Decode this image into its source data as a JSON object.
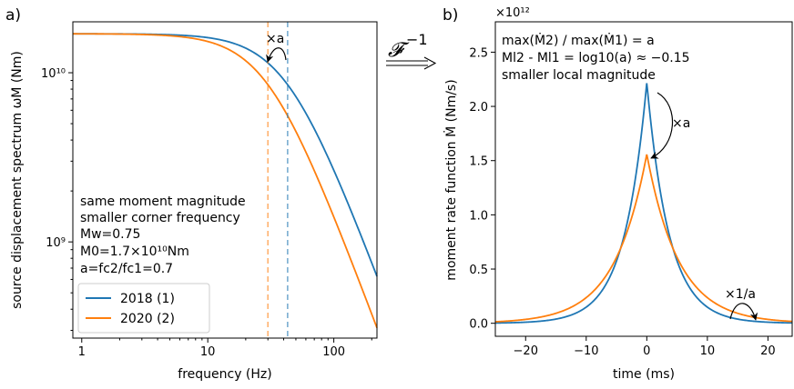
{
  "panels": {
    "left_letter": "a)",
    "right_letter": "b)",
    "transform_symbol": "𝓕",
    "transform_exponent": "−1"
  },
  "chart_data": [
    {
      "type": "line",
      "xlabel": "frequency (Hz)",
      "ylabel": "source displacement spectrum ωM (Nm)",
      "xscale": "log",
      "yscale": "log",
      "xlim": [
        0.85,
        220
      ],
      "ylim": [
        270000000.0,
        20000000000.0
      ],
      "x_ticks": [
        {
          "v": 1,
          "label": "1"
        },
        {
          "v": 10,
          "label": "10"
        },
        {
          "v": 100,
          "label": "100"
        }
      ],
      "y_ticks": [
        {
          "v": 1000000000.0,
          "label": "10⁹"
        },
        {
          "v": 10000000000.0,
          "label": "10¹⁰"
        }
      ],
      "M0": 17000000000.0,
      "series": [
        {
          "name": "2018 (1)",
          "color": "#1f77b4",
          "corner_frequency": 43
        },
        {
          "name": "2020 (2)",
          "color": "#ff7f0e",
          "corner_frequency": 30
        }
      ],
      "annotations": {
        "arrow_label": "×a",
        "text_lines": [
          "same moment magnitude",
          "smaller corner frequency",
          "Mw=0.75",
          "M0=1.7×10¹⁰Nm",
          "a=fc2/fc1=0.7"
        ]
      },
      "legend": "lower-left",
      "grid": false
    },
    {
      "type": "line",
      "xlabel": "time (ms)",
      "ylabel": "moment rate function Ṁ (Nm/s)",
      "offset_text": "×10¹²",
      "xlim": [
        -25,
        24
      ],
      "ylim": [
        -0.12,
        2.78
      ],
      "x_ticks": [
        {
          "v": -20,
          "label": "−20"
        },
        {
          "v": -10,
          "label": "−10"
        },
        {
          "v": 0,
          "label": "0"
        },
        {
          "v": 10,
          "label": "10"
        },
        {
          "v": 20,
          "label": "20"
        }
      ],
      "y_ticks": [
        {
          "v": 0,
          "label": "0.0"
        },
        {
          "v": 0.5,
          "label": "0.5"
        },
        {
          "v": 1.0,
          "label": "1.0"
        },
        {
          "v": 1.5,
          "label": "1.5"
        },
        {
          "v": 2.0,
          "label": "2.0"
        },
        {
          "v": 2.5,
          "label": "2.5"
        }
      ],
      "series": [
        {
          "name": "2018 (1)",
          "color": "#1f77b4",
          "peak": 2.22,
          "decay_ms": 3.7
        },
        {
          "name": "2020 (2)",
          "color": "#ff7f0e",
          "peak": 1.56,
          "decay_ms": 5.3
        }
      ],
      "annotations": {
        "line1": "max(Ṁ2) / max(Ṁ1) = a",
        "line2": "Ml2 - Ml1 = log10(a) ≈ −0.15",
        "line3": "smaller local magnitude",
        "arrow_peak_label": "×a",
        "arrow_tail_label": "×1/a"
      },
      "grid": false
    }
  ]
}
